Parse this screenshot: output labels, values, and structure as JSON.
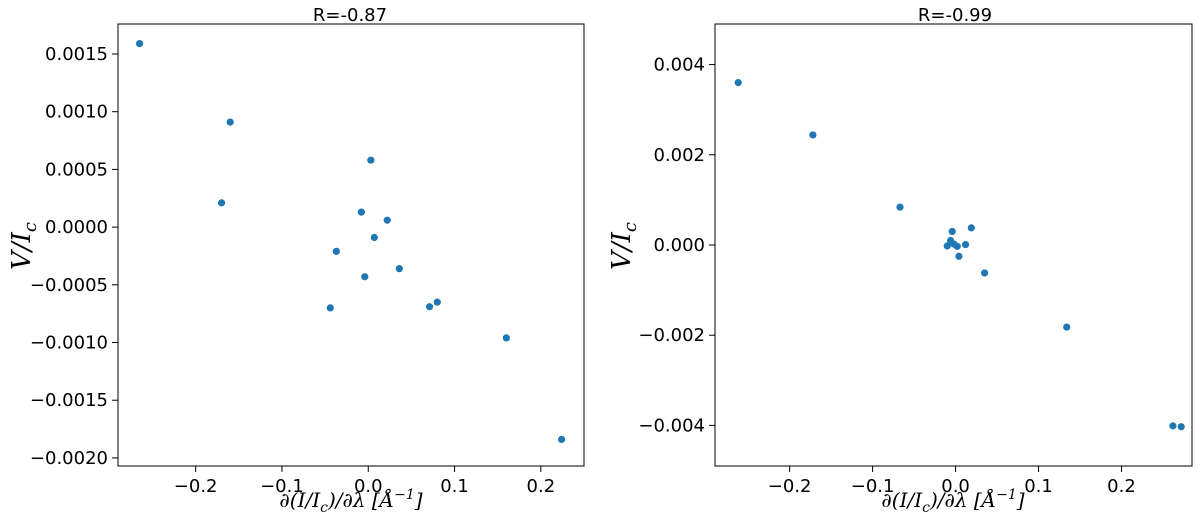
{
  "chart_data": [
    {
      "type": "scatter",
      "title": "R=-0.87",
      "xlabel": "∂(I/I_c)/∂λ  [Å⁻¹]",
      "ylabel": "V/I_c",
      "xlim": [
        -0.29,
        0.25
      ],
      "ylim": [
        -0.00207,
        0.00176
      ],
      "xticks": [
        -0.2,
        -0.1,
        0.0,
        0.1,
        0.2
      ],
      "xtick_labels": [
        "−0.2",
        "−0.1",
        "0.0",
        "0.1",
        "0.2"
      ],
      "yticks": [
        0.0015,
        0.001,
        0.0005,
        0.0,
        -0.0005,
        -0.001,
        -0.0015,
        -0.002
      ],
      "ytick_labels": [
        "0.0015",
        "0.0010",
        "0.0005",
        "0.0000",
        "−0.0005",
        "−0.0010",
        "−0.0015",
        "−0.0020"
      ],
      "marker_color": "#1f77b4",
      "points": [
        [
          -0.265,
          0.00159
        ],
        [
          -0.16,
          0.00091
        ],
        [
          -0.17,
          0.00021
        ],
        [
          0.003,
          0.00058
        ],
        [
          -0.008,
          0.00013
        ],
        [
          0.022,
          6e-05
        ],
        [
          0.007,
          -9e-05
        ],
        [
          -0.037,
          -0.00021
        ],
        [
          0.036,
          -0.00036
        ],
        [
          -0.004,
          -0.00043
        ],
        [
          -0.044,
          -0.0007
        ],
        [
          0.071,
          -0.00069
        ],
        [
          0.08,
          -0.00065
        ],
        [
          0.16,
          -0.00096
        ],
        [
          0.224,
          -0.00184
        ]
      ]
    },
    {
      "type": "scatter",
      "title": "R=-0.99",
      "xlabel": "∂(I/I_c)/∂λ  [Å⁻¹]",
      "ylabel": "V/I_c",
      "xlim": [
        -0.29,
        0.285
      ],
      "ylim": [
        -0.0049,
        0.0049
      ],
      "xticks": [
        -0.2,
        -0.1,
        0.0,
        0.1,
        0.2
      ],
      "xtick_labels": [
        "−0.2",
        "−0.1",
        "0.0",
        "0.1",
        "0.2"
      ],
      "yticks": [
        0.004,
        0.002,
        0.0,
        -0.002,
        -0.004
      ],
      "ytick_labels": [
        "0.004",
        "0.002",
        "0.000",
        "−0.002",
        "−0.004"
      ],
      "marker_color": "#1f77b4",
      "points": [
        [
          -0.262,
          0.0036
        ],
        [
          -0.172,
          0.00244
        ],
        [
          -0.067,
          0.00084
        ],
        [
          -0.004,
          0.0003
        ],
        [
          0.019,
          0.00038
        ],
        [
          -0.006,
          0.0001
        ],
        [
          -0.01,
          -2e-05
        ],
        [
          -0.002,
          2e-05
        ],
        [
          0.002,
          -3e-05
        ],
        [
          0.012,
          1e-05
        ],
        [
          0.004,
          -0.00025
        ],
        [
          0.035,
          -0.00062
        ],
        [
          0.134,
          -0.00182
        ],
        [
          0.262,
          -0.00401
        ],
        [
          0.272,
          -0.00403
        ]
      ]
    }
  ]
}
